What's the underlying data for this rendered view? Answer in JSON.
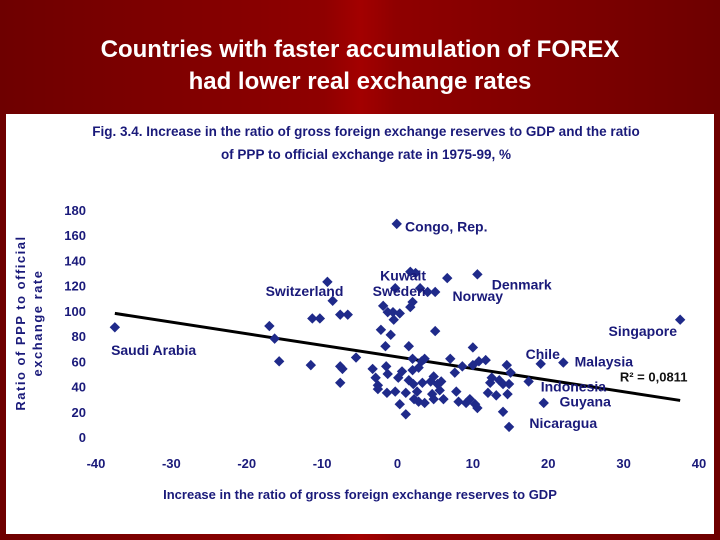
{
  "slide": {
    "title_line1": "Countries with faster accumulation of FOREX",
    "title_line2": "had lower real exchange rates"
  },
  "colors": {
    "background": "#8f0000",
    "title_text": "#ffffff",
    "caption_text": "#1a1a7a",
    "marker": "#1f2a8a",
    "trendline": "#000000"
  },
  "chart_data": {
    "type": "scatter",
    "title": "Fig. 3.4. Increase in the ratio of gross foreign exchange reserves to GDP and the ratio of PPP to official exchange rate in 1975-99, %",
    "title_line1": "Fig. 3.4. Increase in the ratio of gross foreign exchange reserves to GDP and the ratio",
    "title_line2": "of PPP to official exchange rate in 1975-99, %",
    "xlabel": "Increase in the ratio of gross foreign exchange reserves to GDP",
    "ylabel": "Ratio of PPP to official exchange rate",
    "ylabel_line1": "Ratio of PPP to official",
    "ylabel_line2": "exchange rate",
    "xlim": [
      -40,
      40
    ],
    "ylim": [
      0,
      180
    ],
    "xticks": [
      -40,
      -30,
      -20,
      -10,
      0,
      10,
      20,
      30,
      40
    ],
    "yticks": [
      0,
      20,
      40,
      60,
      80,
      100,
      120,
      140,
      160,
      180
    ],
    "grid": false,
    "legend": "none",
    "r_squared": "R² = 0,0811",
    "trendline": {
      "x": [
        -37.5,
        37.5
      ],
      "y": [
        98,
        29
      ]
    },
    "labels": [
      {
        "text": "Saudi Arabia",
        "x": -38,
        "y": 65
      },
      {
        "text": "Switzerland",
        "x": -17.5,
        "y": 112
      },
      {
        "text": "Kuwait",
        "x": -2.3,
        "y": 124
      },
      {
        "text": "Sweden",
        "x": -3.3,
        "y": 112
      },
      {
        "text": "Congo, Rep.",
        "x": 1,
        "y": 163
      },
      {
        "text": "Norway",
        "x": 7.3,
        "y": 108
      },
      {
        "text": "Denmark",
        "x": 12.5,
        "y": 117
      },
      {
        "text": "Singapore",
        "x": 28,
        "y": 80
      },
      {
        "text": "Chile",
        "x": 17,
        "y": 62
      },
      {
        "text": "Malaysia",
        "x": 23.5,
        "y": 56
      },
      {
        "text": "Indonesia",
        "x": 19,
        "y": 36
      },
      {
        "text": "Guyana",
        "x": 21.5,
        "y": 24
      },
      {
        "text": "Nicaragua",
        "x": 17.5,
        "y": 7
      }
    ],
    "points": [
      [
        -37.5,
        87
      ],
      [
        -17,
        88
      ],
      [
        -16.3,
        78
      ],
      [
        -15.7,
        60
      ],
      [
        -11.5,
        57
      ],
      [
        -11.3,
        94
      ],
      [
        -10.3,
        94
      ],
      [
        -9.3,
        123
      ],
      [
        -8.6,
        108
      ],
      [
        -7.6,
        97
      ],
      [
        -7.6,
        56
      ],
      [
        -7.6,
        43
      ],
      [
        -7.3,
        54
      ],
      [
        -6.6,
        97
      ],
      [
        -5.5,
        63
      ],
      [
        -3.3,
        54
      ],
      [
        -2.9,
        47
      ],
      [
        -2.6,
        41
      ],
      [
        -2.6,
        38
      ],
      [
        -2.2,
        85
      ],
      [
        -1.9,
        104
      ],
      [
        -1.6,
        72
      ],
      [
        -1.5,
        56
      ],
      [
        -1.4,
        35
      ],
      [
        -1.3,
        99
      ],
      [
        -1.3,
        50
      ],
      [
        -0.9,
        81
      ],
      [
        -0.6,
        99
      ],
      [
        -0.5,
        93
      ],
      [
        -0.3,
        118
      ],
      [
        -0.3,
        36
      ],
      [
        -0.1,
        169
      ],
      [
        0.1,
        47
      ],
      [
        0.3,
        26
      ],
      [
        0.3,
        98
      ],
      [
        0.6,
        52
      ],
      [
        1.1,
        18
      ],
      [
        1.1,
        35
      ],
      [
        1.5,
        45
      ],
      [
        1.5,
        72
      ],
      [
        1.7,
        103
      ],
      [
        1.7,
        131
      ],
      [
        2.0,
        107
      ],
      [
        2.0,
        62
      ],
      [
        2.0,
        53
      ],
      [
        2.1,
        42
      ],
      [
        2.2,
        30
      ],
      [
        2.4,
        130
      ],
      [
        2.6,
        36
      ],
      [
        2.8,
        55
      ],
      [
        2.8,
        28
      ],
      [
        3.0,
        118
      ],
      [
        3.2,
        60
      ],
      [
        3.3,
        43
      ],
      [
        3.6,
        62
      ],
      [
        3.6,
        27
      ],
      [
        4.0,
        115
      ],
      [
        4.4,
        44
      ],
      [
        4.6,
        34
      ],
      [
        4.8,
        48
      ],
      [
        4.8,
        30
      ],
      [
        5.0,
        115
      ],
      [
        5.0,
        84
      ],
      [
        5.3,
        42
      ],
      [
        5.6,
        37
      ],
      [
        5.8,
        44
      ],
      [
        6.1,
        30
      ],
      [
        6.6,
        126
      ],
      [
        7.0,
        62
      ],
      [
        7.6,
        51
      ],
      [
        7.8,
        36
      ],
      [
        8.1,
        28
      ],
      [
        8.6,
        56
      ],
      [
        9.1,
        27
      ],
      [
        9.6,
        30
      ],
      [
        10.0,
        71
      ],
      [
        10.0,
        57
      ],
      [
        10.3,
        26
      ],
      [
        10.6,
        129
      ],
      [
        10.6,
        23
      ],
      [
        10.8,
        60
      ],
      [
        11.7,
        61
      ],
      [
        12.0,
        35
      ],
      [
        12.3,
        43
      ],
      [
        12.5,
        47
      ],
      [
        13.1,
        33
      ],
      [
        13.5,
        45
      ],
      [
        14.0,
        42
      ],
      [
        14.0,
        20
      ],
      [
        14.5,
        57
      ],
      [
        14.6,
        34
      ],
      [
        14.8,
        42
      ],
      [
        14.8,
        8
      ],
      [
        15.0,
        51
      ],
      [
        17.4,
        44
      ],
      [
        19.0,
        58
      ],
      [
        19.4,
        27
      ],
      [
        22.0,
        59
      ],
      [
        37.5,
        93
      ]
    ]
  }
}
